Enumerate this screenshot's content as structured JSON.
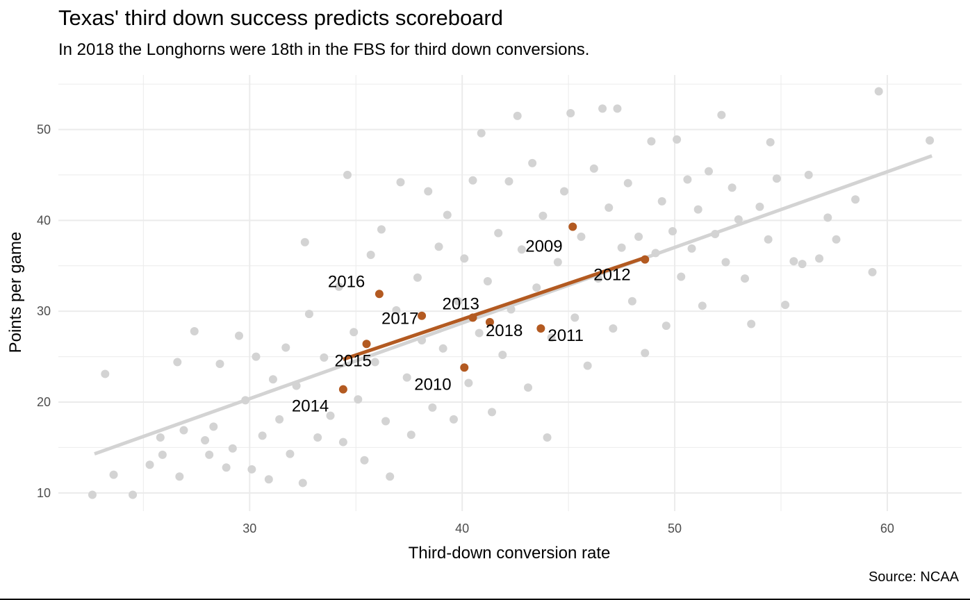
{
  "chart_data": {
    "type": "scatter",
    "title": "Texas' third down success predicts scoreboard",
    "subtitle": "In 2018 the Longhorns were 18th in the FBS for third down conversions.",
    "caption": "Source: NCAA",
    "xlabel": "Third-down conversion rate",
    "ylabel": "Points per game",
    "xlim": [
      21.0,
      63.5
    ],
    "ylim": [
      8.0,
      56.0
    ],
    "x_ticks": [
      30,
      40,
      50,
      60
    ],
    "y_ticks": [
      10,
      20,
      30,
      40,
      50
    ],
    "grid": true,
    "colors": {
      "background_points": "#d3d3d3",
      "background_line": "#d3d3d3",
      "texas": "#b35a21",
      "grid": "#ebebeb"
    },
    "fbs_trend_line": {
      "x": [
        22.7,
        62.1
      ],
      "y": [
        14.3,
        47.1
      ]
    },
    "texas_trend_line": {
      "x": [
        34.4,
        48.6
      ],
      "y": [
        24.7,
        35.9
      ]
    },
    "texas_seasons": [
      {
        "year": "2009",
        "x": 45.2,
        "y": 39.3
      },
      {
        "year": "2010",
        "x": 40.1,
        "y": 23.8
      },
      {
        "year": "2011",
        "x": 43.7,
        "y": 28.1
      },
      {
        "year": "2012",
        "x": 48.6,
        "y": 35.7
      },
      {
        "year": "2013",
        "x": 40.5,
        "y": 29.3
      },
      {
        "year": "2014",
        "x": 34.4,
        "y": 21.4
      },
      {
        "year": "2015",
        "x": 35.5,
        "y": 26.4
      },
      {
        "year": "2016",
        "x": 36.1,
        "y": 31.9
      },
      {
        "year": "2017",
        "x": 38.1,
        "y": 29.5
      },
      {
        "year": "2018",
        "x": 41.3,
        "y": 28.8
      }
    ],
    "fbs_points": [
      [
        22.6,
        9.8
      ],
      [
        24.5,
        9.8
      ],
      [
        23.2,
        23.1
      ],
      [
        23.6,
        12.0
      ],
      [
        25.3,
        13.1
      ],
      [
        25.8,
        16.1
      ],
      [
        25.9,
        14.2
      ],
      [
        26.6,
        24.4
      ],
      [
        26.7,
        11.8
      ],
      [
        26.9,
        16.9
      ],
      [
        27.4,
        27.8
      ],
      [
        27.9,
        15.8
      ],
      [
        28.1,
        14.2
      ],
      [
        28.3,
        17.3
      ],
      [
        28.6,
        24.2
      ],
      [
        28.9,
        12.8
      ],
      [
        29.2,
        14.9
      ],
      [
        29.5,
        27.3
      ],
      [
        29.8,
        20.2
      ],
      [
        30.1,
        12.6
      ],
      [
        30.3,
        25.0
      ],
      [
        30.6,
        16.3
      ],
      [
        30.9,
        11.5
      ],
      [
        31.1,
        22.5
      ],
      [
        31.4,
        18.1
      ],
      [
        31.7,
        26.0
      ],
      [
        31.9,
        14.3
      ],
      [
        32.2,
        21.8
      ],
      [
        32.5,
        11.1
      ],
      [
        32.6,
        37.6
      ],
      [
        32.8,
        29.7
      ],
      [
        33.2,
        16.1
      ],
      [
        33.5,
        24.9
      ],
      [
        33.8,
        18.5
      ],
      [
        34.2,
        32.7
      ],
      [
        34.4,
        15.6
      ],
      [
        34.6,
        45.0
      ],
      [
        34.9,
        27.7
      ],
      [
        35.1,
        20.3
      ],
      [
        35.4,
        13.6
      ],
      [
        35.7,
        36.2
      ],
      [
        35.9,
        24.4
      ],
      [
        36.2,
        39.0
      ],
      [
        36.4,
        17.9
      ],
      [
        36.6,
        11.8
      ],
      [
        36.9,
        30.1
      ],
      [
        37.1,
        44.2
      ],
      [
        37.4,
        22.7
      ],
      [
        37.6,
        16.4
      ],
      [
        37.9,
        33.7
      ],
      [
        38.1,
        26.8
      ],
      [
        38.4,
        43.2
      ],
      [
        38.6,
        19.4
      ],
      [
        38.9,
        37.1
      ],
      [
        39.1,
        25.9
      ],
      [
        39.3,
        40.6
      ],
      [
        39.6,
        18.1
      ],
      [
        39.8,
        31.1
      ],
      [
        40.1,
        35.8
      ],
      [
        40.3,
        22.1
      ],
      [
        40.5,
        44.4
      ],
      [
        40.8,
        27.6
      ],
      [
        40.9,
        49.6
      ],
      [
        41.2,
        33.3
      ],
      [
        41.4,
        18.9
      ],
      [
        41.7,
        38.6
      ],
      [
        41.9,
        25.2
      ],
      [
        42.2,
        44.3
      ],
      [
        42.3,
        30.2
      ],
      [
        42.6,
        51.5
      ],
      [
        42.8,
        36.8
      ],
      [
        43.1,
        21.6
      ],
      [
        43.3,
        46.3
      ],
      [
        43.5,
        32.6
      ],
      [
        43.8,
        40.5
      ],
      [
        44.0,
        16.1
      ],
      [
        44.2,
        27.1
      ],
      [
        44.5,
        35.4
      ],
      [
        44.8,
        43.2
      ],
      [
        45.1,
        51.8
      ],
      [
        45.3,
        29.3
      ],
      [
        45.6,
        38.2
      ],
      [
        45.9,
        24.0
      ],
      [
        46.2,
        45.7
      ],
      [
        46.4,
        33.6
      ],
      [
        46.6,
        52.3
      ],
      [
        46.9,
        41.4
      ],
      [
        47.1,
        28.1
      ],
      [
        47.3,
        52.3
      ],
      [
        47.5,
        37.0
      ],
      [
        47.8,
        44.1
      ],
      [
        48.0,
        31.1
      ],
      [
        48.3,
        38.2
      ],
      [
        48.6,
        25.4
      ],
      [
        48.9,
        48.7
      ],
      [
        49.1,
        36.4
      ],
      [
        49.4,
        42.1
      ],
      [
        49.6,
        28.4
      ],
      [
        49.9,
        38.8
      ],
      [
        50.1,
        48.9
      ],
      [
        50.3,
        33.8
      ],
      [
        50.6,
        44.5
      ],
      [
        50.8,
        36.9
      ],
      [
        51.1,
        41.2
      ],
      [
        51.3,
        30.6
      ],
      [
        51.6,
        45.4
      ],
      [
        51.9,
        38.5
      ],
      [
        52.2,
        51.6
      ],
      [
        52.4,
        35.4
      ],
      [
        52.7,
        43.6
      ],
      [
        53.0,
        40.1
      ],
      [
        53.3,
        33.6
      ],
      [
        53.6,
        28.6
      ],
      [
        54.0,
        41.5
      ],
      [
        54.4,
        37.9
      ],
      [
        54.5,
        48.6
      ],
      [
        54.8,
        44.6
      ],
      [
        55.2,
        30.7
      ],
      [
        55.6,
        35.5
      ],
      [
        56.0,
        35.2
      ],
      [
        56.3,
        45.0
      ],
      [
        56.8,
        35.8
      ],
      [
        57.2,
        40.3
      ],
      [
        57.6,
        37.9
      ],
      [
        58.5,
        42.3
      ],
      [
        59.3,
        34.3
      ],
      [
        59.6,
        54.2
      ],
      [
        62.0,
        48.8
      ]
    ]
  }
}
